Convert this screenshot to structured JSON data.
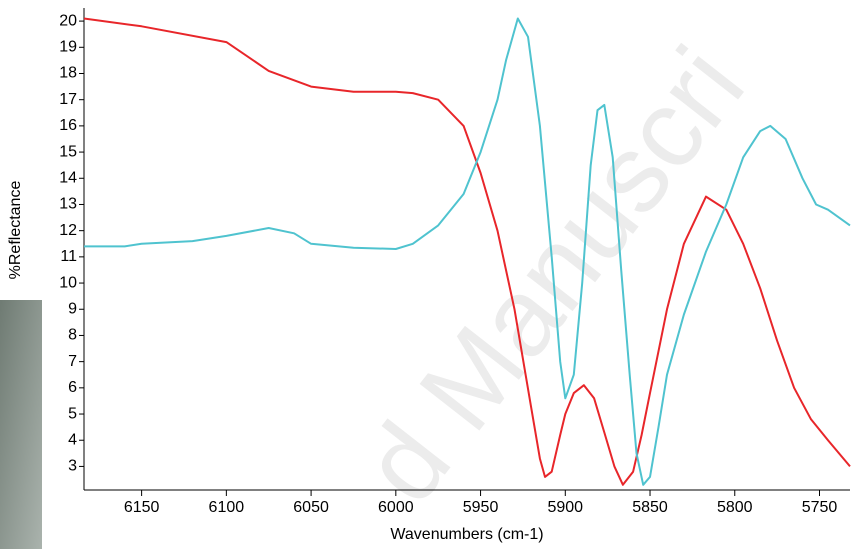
{
  "chart_data": {
    "type": "line",
    "watermark": "d Manuscri",
    "x_label": "Wavenumbers (cm-1)",
    "y_label": "%Reflectance",
    "xlim": [
      6184,
      5732
    ],
    "ylim": [
      2.1,
      20.5
    ],
    "xticks": [
      6150,
      6100,
      6050,
      6000,
      5950,
      5900,
      5850,
      5800,
      5750
    ],
    "yticks": [
      3,
      4,
      5,
      6,
      7,
      8,
      9,
      10,
      11,
      12,
      13,
      14,
      15,
      16,
      17,
      18,
      19,
      20
    ],
    "series": [
      {
        "color": "#e8262a",
        "x": [
          6184,
          6150,
          6100,
          6075,
          6050,
          6025,
          6000,
          5990,
          5975,
          5960,
          5950,
          5940,
          5930,
          5920,
          5915,
          5912,
          5908,
          5903,
          5900,
          5895,
          5889,
          5883,
          5877,
          5871,
          5866,
          5860,
          5855,
          5850,
          5840,
          5830,
          5817,
          5805,
          5795,
          5785,
          5775,
          5765,
          5755,
          5745,
          5732
        ],
        "values": [
          20.1,
          19.8,
          19.2,
          18.1,
          17.5,
          17.3,
          17.3,
          17.25,
          17.0,
          16.0,
          14.2,
          12.0,
          9.0,
          5.2,
          3.3,
          2.6,
          2.8,
          4.2,
          5.0,
          5.8,
          6.1,
          5.6,
          4.3,
          3.0,
          2.3,
          2.8,
          4.2,
          5.8,
          9.0,
          11.5,
          13.3,
          12.8,
          11.5,
          9.8,
          7.8,
          6.0,
          4.8,
          4.0,
          3.0
        ]
      },
      {
        "color": "#4fc3cf",
        "x": [
          6184,
          6160,
          6150,
          6120,
          6100,
          6075,
          6060,
          6050,
          6025,
          6000,
          5990,
          5975,
          5960,
          5950,
          5940,
          5935,
          5928,
          5922,
          5915,
          5908,
          5903,
          5900,
          5895,
          5890,
          5885,
          5881,
          5877,
          5872,
          5867,
          5862,
          5858,
          5854,
          5850,
          5845,
          5840,
          5830,
          5817,
          5805,
          5795,
          5785,
          5779,
          5770,
          5760,
          5752,
          5745,
          5732
        ],
        "values": [
          11.4,
          11.4,
          11.5,
          11.6,
          11.8,
          12.1,
          11.9,
          11.5,
          11.35,
          11.3,
          11.5,
          12.2,
          13.4,
          15.0,
          17.0,
          18.5,
          20.1,
          19.4,
          16.0,
          11.0,
          7.0,
          5.6,
          6.5,
          10.0,
          14.5,
          16.6,
          16.8,
          14.8,
          10.5,
          6.5,
          3.5,
          2.3,
          2.6,
          4.5,
          6.5,
          8.8,
          11.2,
          13.0,
          14.8,
          15.8,
          16.0,
          15.5,
          14.0,
          13.0,
          12.8,
          12.2
        ]
      }
    ]
  }
}
